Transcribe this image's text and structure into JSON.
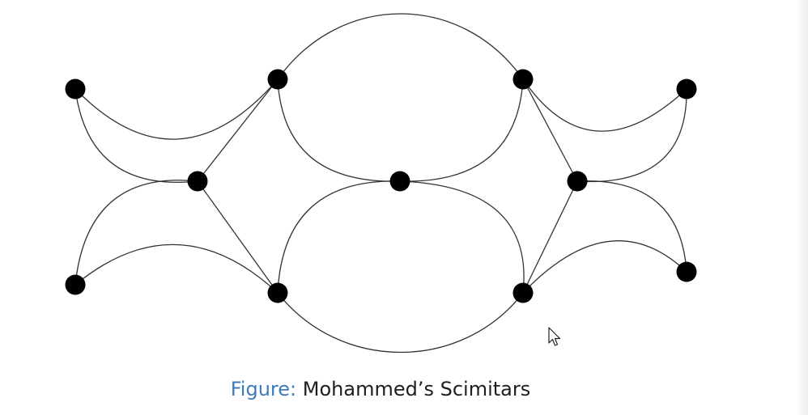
{
  "diagram": {
    "caption_prefix": "Figure:",
    "caption_text": "Mohammed’s Scimitars",
    "node_color": "#000000",
    "edge_color": "#333333",
    "caption_prefix_color": "#3d7bbf"
  },
  "cursor": {
    "icon": "mouse-pointer-icon"
  }
}
